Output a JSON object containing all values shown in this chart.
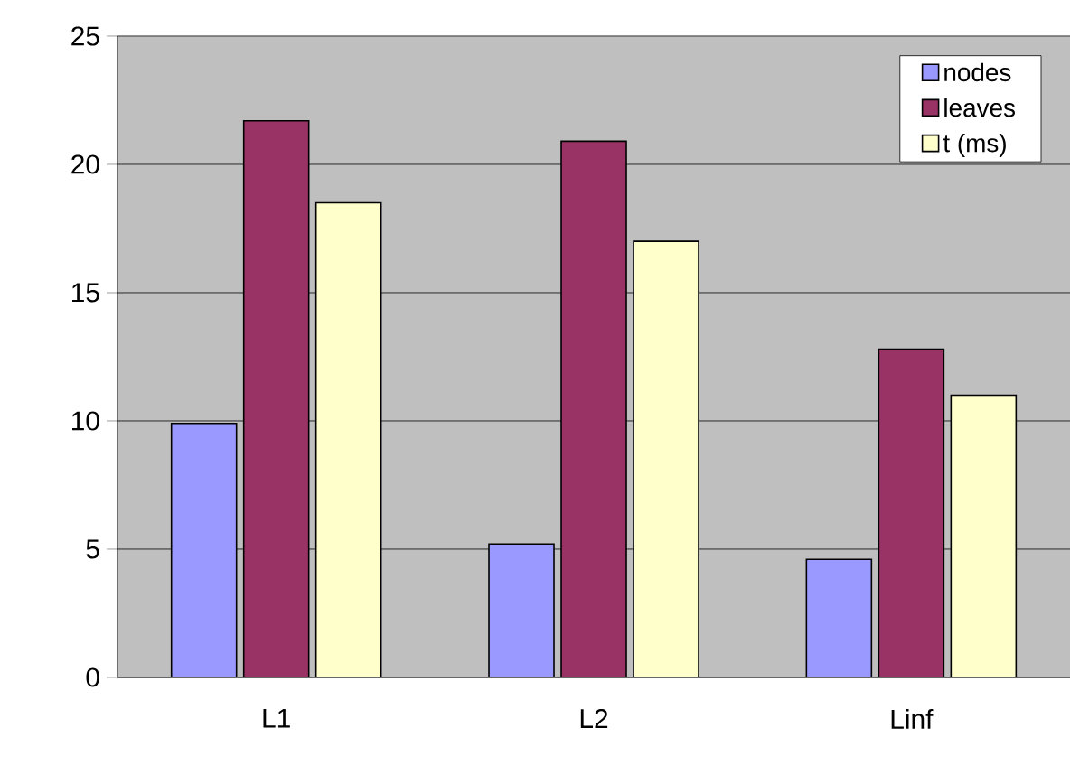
{
  "chart_data": {
    "type": "bar",
    "categories": [
      "L1",
      "L2",
      "Linf"
    ],
    "series": [
      {
        "name": "nodes",
        "color": "#9999ff",
        "values": [
          9.9,
          5.2,
          4.6
        ]
      },
      {
        "name": "leaves",
        "color": "#993366",
        "values": [
          21.7,
          20.9,
          12.8
        ]
      },
      {
        "name": "t (ms)",
        "color": "#ffffcc",
        "values": [
          18.5,
          17.0,
          11.0
        ]
      }
    ],
    "ylim": [
      0,
      25
    ],
    "yticks": [
      0,
      5,
      10,
      15,
      20,
      25
    ],
    "grid": "y",
    "legend": "top right"
  }
}
